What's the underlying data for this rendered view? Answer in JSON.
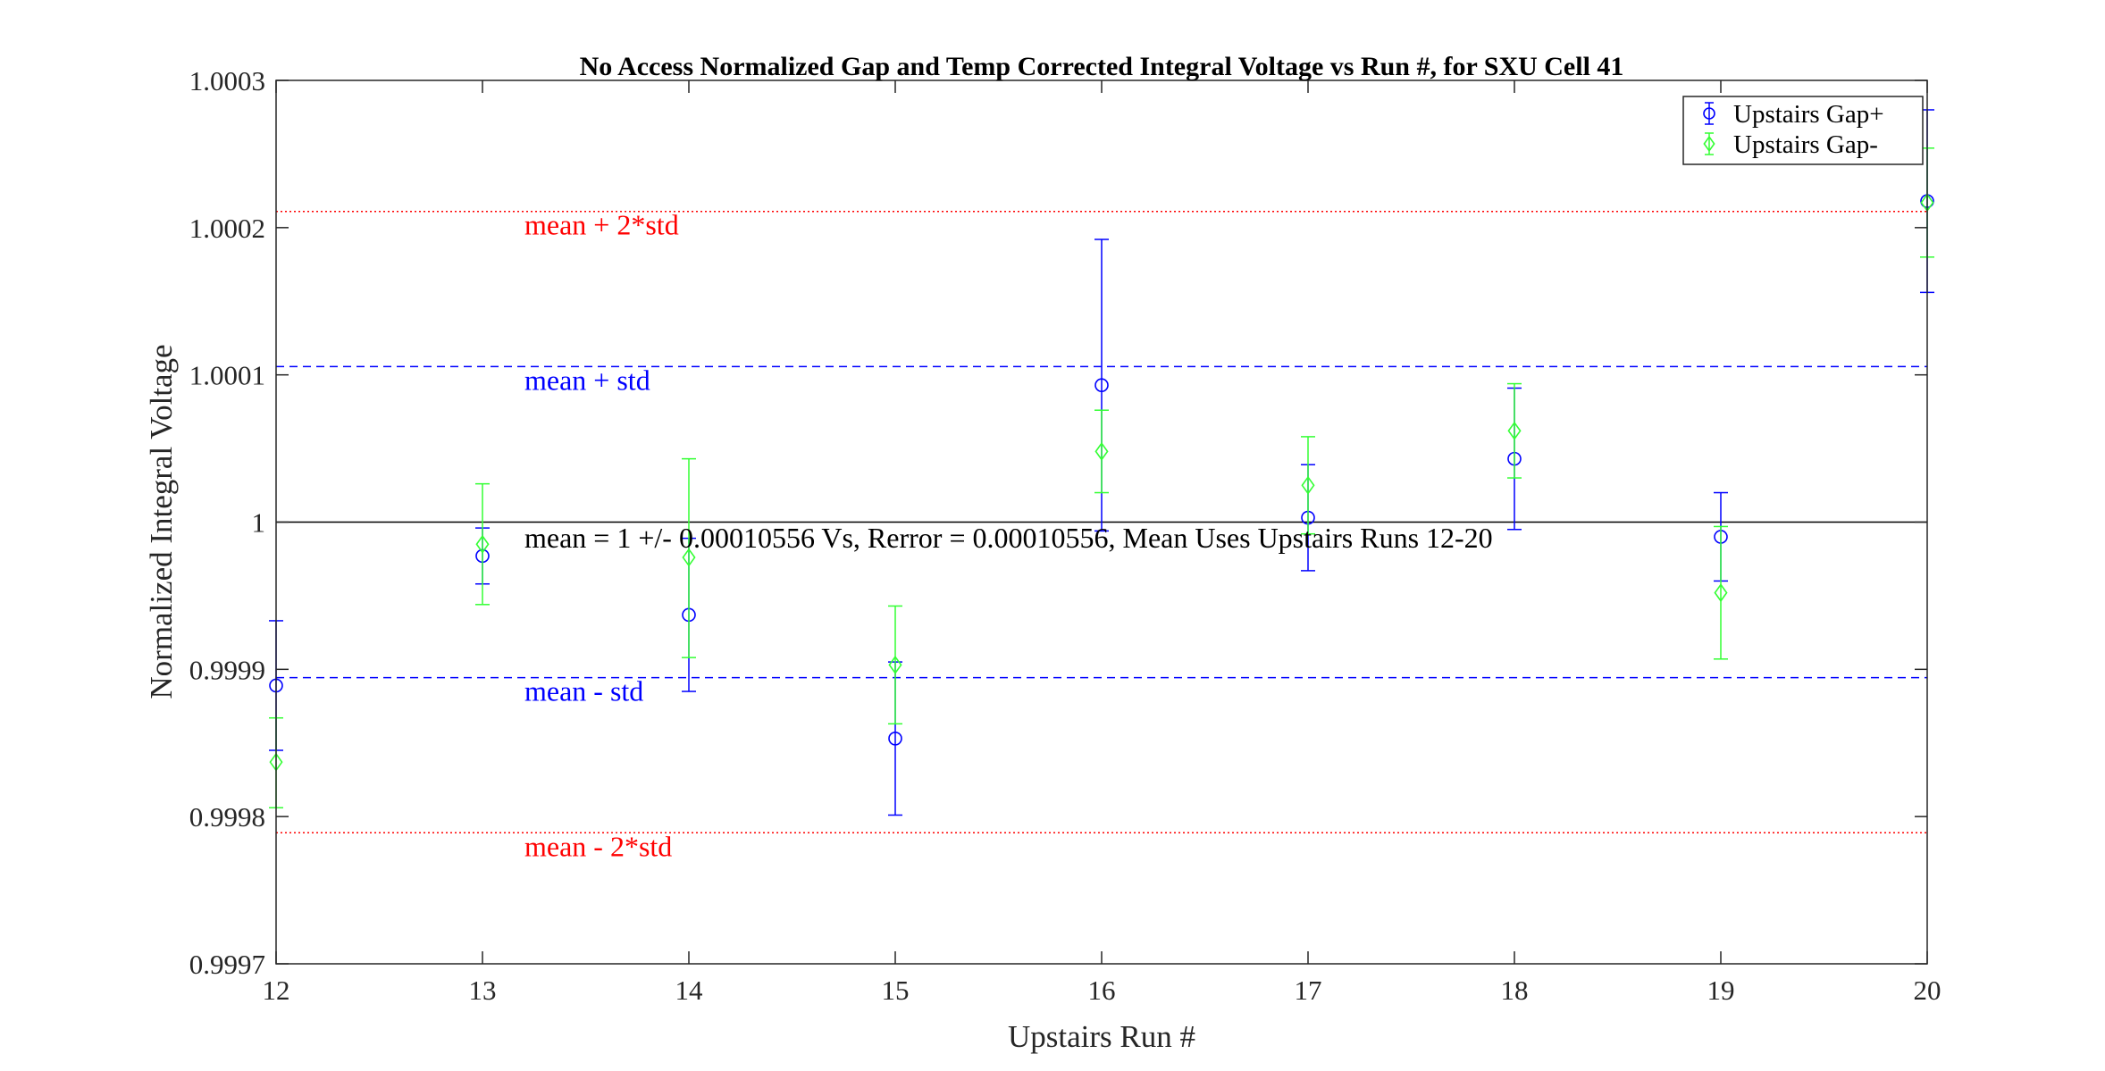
{
  "chart_data": {
    "type": "scatter",
    "title": "No Access Normalized Gap and Temp Corrected Integral Voltage vs Run #, for SXU Cell 41",
    "xlabel": "Upstairs Run #",
    "ylabel": "Normalized Integral Voltage",
    "xlim": [
      12,
      20
    ],
    "ylim": [
      0.9997,
      1.0003
    ],
    "x_ticks": [
      12,
      13,
      14,
      15,
      16,
      17,
      18,
      19,
      20
    ],
    "y_ticks": [
      0.9997,
      0.9998,
      0.9999,
      1,
      1.0001,
      1.0002,
      1.0003
    ],
    "y_tick_labels": [
      "0.9997",
      "0.9998",
      "0.9999",
      "1",
      "1.0001",
      "1.0002",
      "1.0003"
    ],
    "legend_position": "top-right",
    "series": [
      {
        "name": "Upstairs Gap+",
        "marker": "circle",
        "color": "#0000ff",
        "x": [
          12,
          13,
          14,
          15,
          16,
          17,
          18,
          19,
          20
        ],
        "y": [
          0.999889,
          0.999977,
          0.999937,
          0.999853,
          1.000093,
          1.000003,
          1.000043,
          0.99999,
          1.000218
        ],
        "err_low": [
          0.999845,
          0.999958,
          0.999885,
          0.999801,
          0.999994,
          0.999967,
          0.999995,
          0.99996,
          1.000156
        ],
        "err_high": [
          0.999933,
          0.999996,
          0.999989,
          0.999905,
          1.000192,
          1.000039,
          1.000091,
          1.00002,
          1.00028
        ]
      },
      {
        "name": "Upstairs Gap-",
        "marker": "diamond",
        "color": "#33ff33",
        "x": [
          12,
          13,
          14,
          15,
          16,
          17,
          18,
          19,
          20
        ],
        "y": [
          0.999837,
          0.999985,
          0.999976,
          0.999903,
          1.000048,
          1.000025,
          1.000062,
          0.999952,
          1.000217
        ],
        "err_low": [
          0.999806,
          0.999944,
          0.999908,
          0.999863,
          1.00002,
          0.999992,
          1.00003,
          0.999907,
          1.00018
        ],
        "err_high": [
          0.999867,
          1.000026,
          1.000043,
          0.999943,
          1.000076,
          1.000058,
          1.000094,
          0.999997,
          1.000254
        ]
      }
    ],
    "reference_lines": [
      {
        "label": "mean + 2*std",
        "y": 1.000211,
        "style": "dotted",
        "color": "#ff0000"
      },
      {
        "label": "mean + std",
        "y": 1.0001056,
        "style": "dashed",
        "color": "#0000ff"
      },
      {
        "label": "",
        "y": 1.0,
        "style": "solid",
        "color": "#000000"
      },
      {
        "label": "mean - std",
        "y": 0.9998944,
        "style": "dashed",
        "color": "#0000ff"
      },
      {
        "label": "mean - 2*std",
        "y": 0.999789,
        "style": "dotted",
        "color": "#ff0000"
      }
    ],
    "annotation": "mean = 1 +/- 0.00010556 Vs, Rerror = 0.00010556, Mean Uses Upstairs Runs 12-20"
  }
}
